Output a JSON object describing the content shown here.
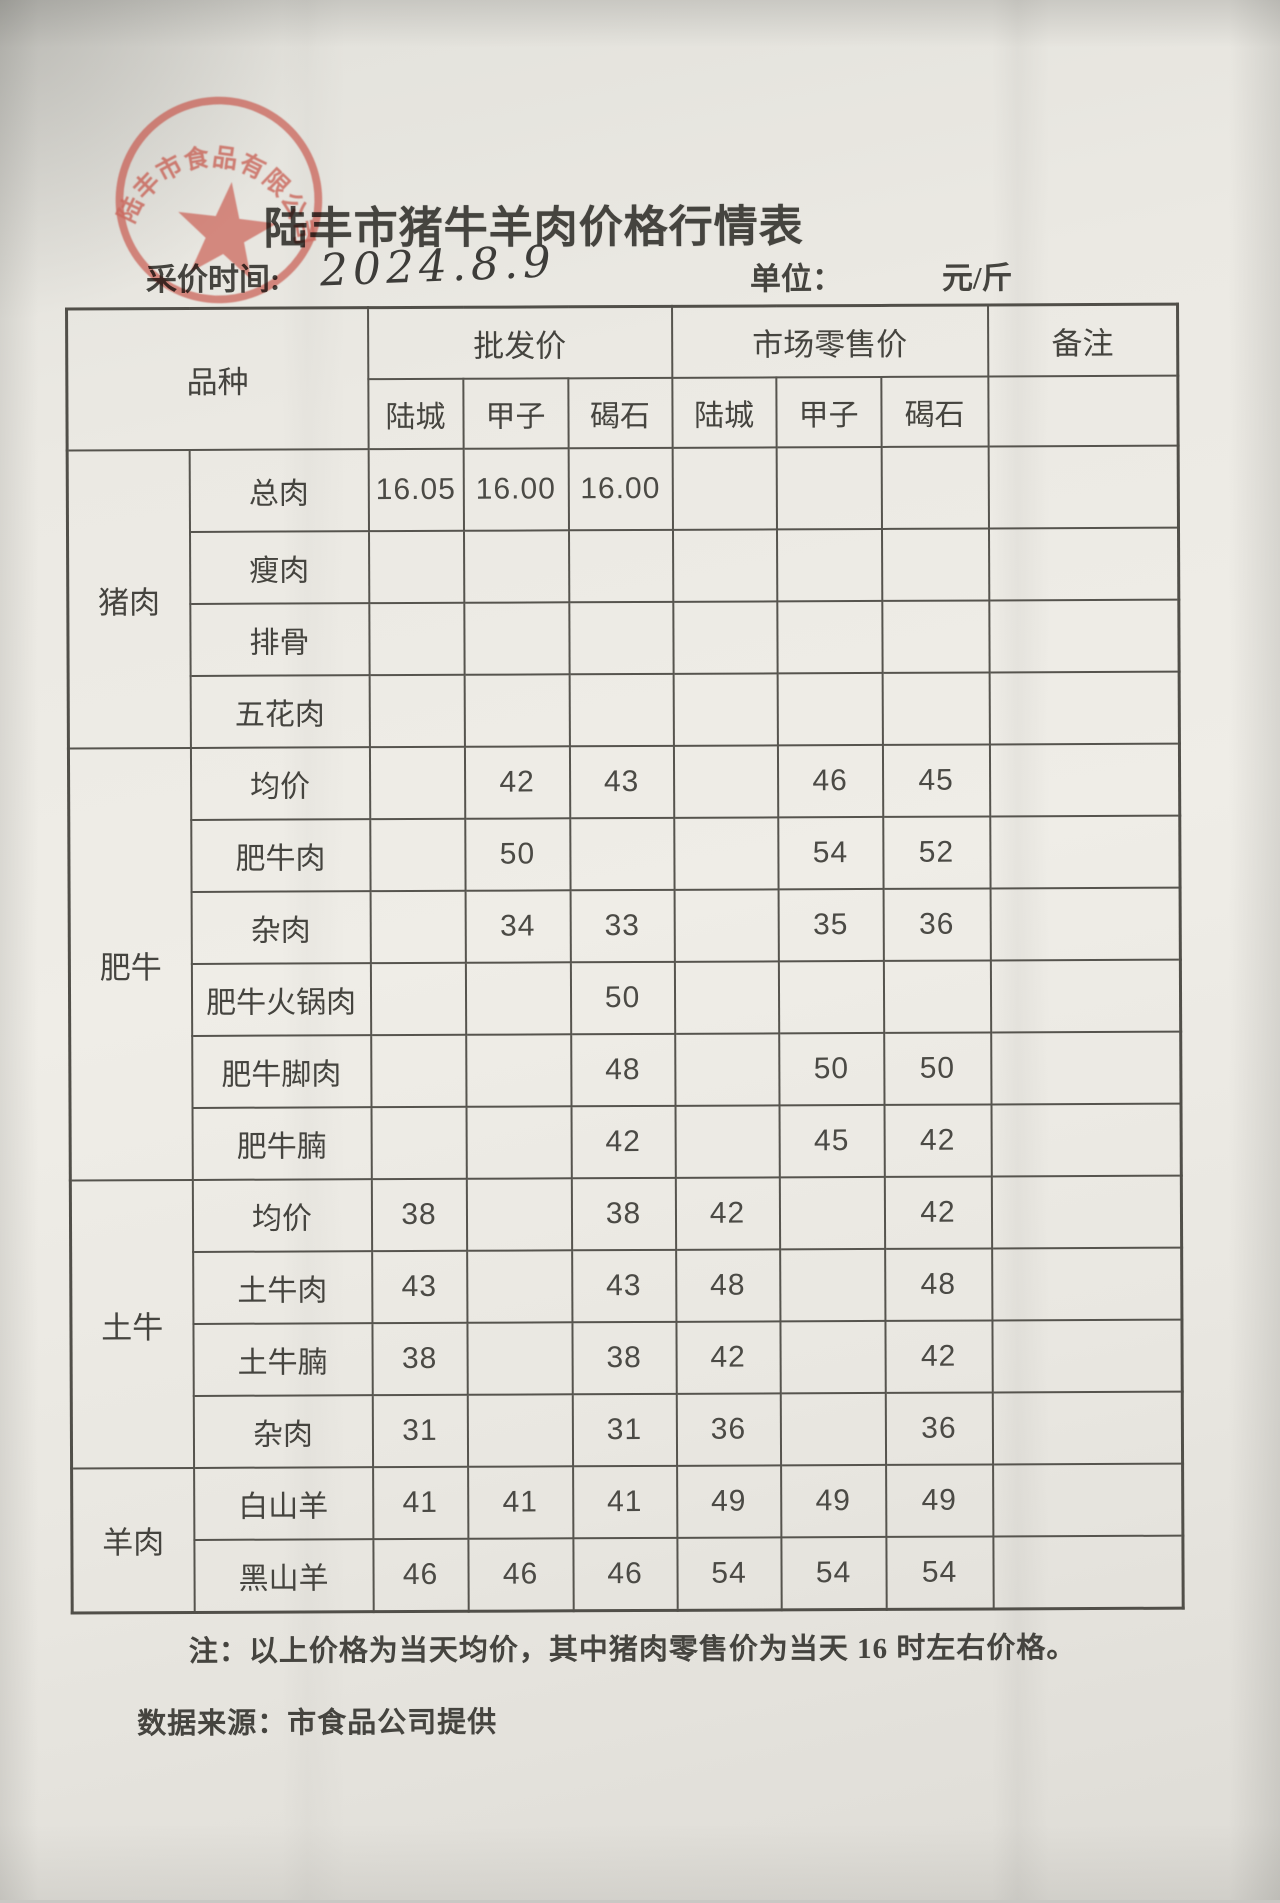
{
  "page": {
    "title": "陆丰市猪牛羊肉价格行情表",
    "date_label": "采价时间:",
    "date_value": "2024.8.9",
    "unit_label": "单位：",
    "unit_value": "元/斤",
    "note": "注：以上价格为当天均价，其中猪肉零售价为当天 16 时左右价格。",
    "source": "数据来源：市食品公司提供",
    "stamp_text": "陆丰市食品有限公司"
  },
  "colors": {
    "stamp_red": "#c4493d",
    "ink": "#45443f",
    "paper": "#ebe9e3",
    "grid_line": "#56544e"
  },
  "table": {
    "header": {
      "variety": "品种",
      "wholesale": "批发价",
      "retail": "市场零售价",
      "remark": "备注",
      "locations": [
        "陆城",
        "甲子",
        "碣石"
      ]
    },
    "sections": [
      {
        "category": "猪肉",
        "rows": [
          {
            "item": "总肉",
            "wholesale": [
              "16.05",
              "16.00",
              "16.00"
            ],
            "retail": [
              "",
              "",
              ""
            ],
            "remark": ""
          },
          {
            "item": "瘦肉",
            "wholesale": [
              "",
              "",
              ""
            ],
            "retail": [
              "",
              "",
              ""
            ],
            "remark": ""
          },
          {
            "item": "排骨",
            "wholesale": [
              "",
              "",
              ""
            ],
            "retail": [
              "",
              "",
              ""
            ],
            "remark": ""
          },
          {
            "item": "五花肉",
            "wholesale": [
              "",
              "",
              ""
            ],
            "retail": [
              "",
              "",
              ""
            ],
            "remark": ""
          }
        ]
      },
      {
        "category": "肥牛",
        "rows": [
          {
            "item": "均价",
            "wholesale": [
              "",
              "42",
              "43"
            ],
            "retail": [
              "",
              "46",
              "45"
            ],
            "remark": ""
          },
          {
            "item": "肥牛肉",
            "wholesale": [
              "",
              "50",
              ""
            ],
            "retail": [
              "",
              "54",
              "52"
            ],
            "remark": ""
          },
          {
            "item": "杂肉",
            "wholesale": [
              "",
              "34",
              "33"
            ],
            "retail": [
              "",
              "35",
              "36"
            ],
            "remark": ""
          },
          {
            "item": "肥牛火锅肉",
            "wholesale": [
              "",
              "",
              "50"
            ],
            "retail": [
              "",
              "",
              ""
            ],
            "remark": ""
          },
          {
            "item": "肥牛脚肉",
            "wholesale": [
              "",
              "",
              "48"
            ],
            "retail": [
              "",
              "50",
              "50"
            ],
            "remark": ""
          },
          {
            "item": "肥牛腩",
            "wholesale": [
              "",
              "",
              "42"
            ],
            "retail": [
              "",
              "45",
              "42"
            ],
            "remark": ""
          }
        ]
      },
      {
        "category": "土牛",
        "rows": [
          {
            "item": "均价",
            "wholesale": [
              "38",
              "",
              "38"
            ],
            "retail": [
              "42",
              "",
              "42"
            ],
            "remark": ""
          },
          {
            "item": "土牛肉",
            "wholesale": [
              "43",
              "",
              "43"
            ],
            "retail": [
              "48",
              "",
              "48"
            ],
            "remark": ""
          },
          {
            "item": "土牛腩",
            "wholesale": [
              "38",
              "",
              "38"
            ],
            "retail": [
              "42",
              "",
              "42"
            ],
            "remark": ""
          },
          {
            "item": "杂肉",
            "wholesale": [
              "31",
              "",
              "31"
            ],
            "retail": [
              "36",
              "",
              "36"
            ],
            "remark": ""
          }
        ]
      },
      {
        "category": "羊肉",
        "rows": [
          {
            "item": "白山羊",
            "wholesale": [
              "41",
              "41",
              "41"
            ],
            "retail": [
              "49",
              "49",
              "49"
            ],
            "remark": ""
          },
          {
            "item": "黑山羊",
            "wholesale": [
              "46",
              "46",
              "46"
            ],
            "retail": [
              "54",
              "54",
              "54"
            ],
            "remark": ""
          }
        ]
      }
    ]
  }
}
